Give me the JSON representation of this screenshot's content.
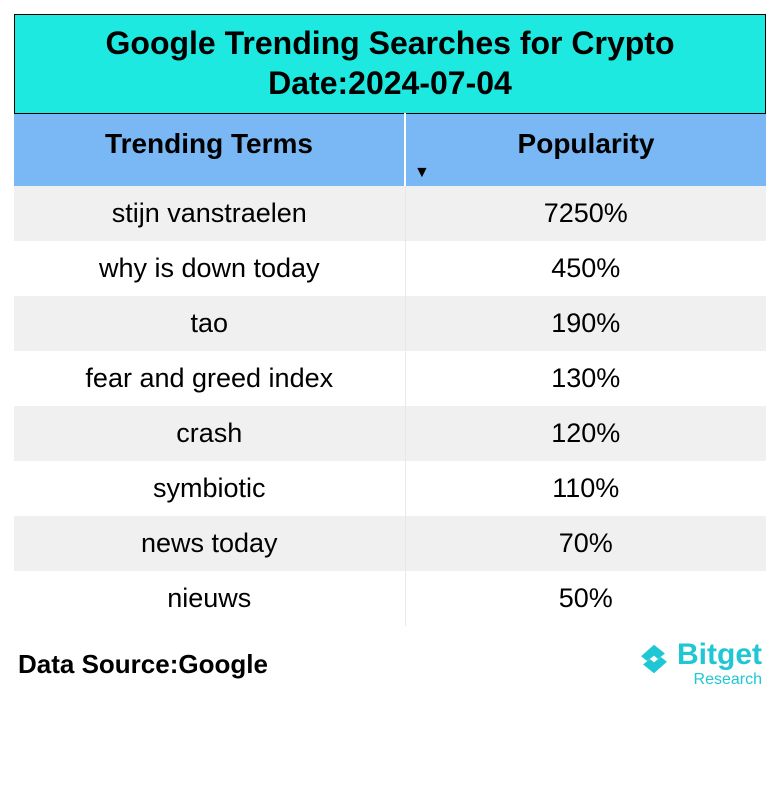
{
  "title": {
    "line1": "Google Trending Searches for Crypto",
    "line2": "Date:2024-07-04",
    "background_color": "#1de9e0",
    "text_color": "#000000",
    "font_size": 32,
    "font_weight": 700
  },
  "table": {
    "type": "table",
    "header_background": "#7ab8f5",
    "header_text_color": "#000000",
    "header_font_size": 28,
    "row_even_bg": "#ffffff",
    "row_odd_bg": "#f0f0f0",
    "cell_font_size": 27,
    "border_color": "#000000",
    "inner_divider_color": "#e8e8e8",
    "columns": [
      {
        "label": "Trending Terms",
        "width_pct": 52,
        "align": "center",
        "sorted": false
      },
      {
        "label": "Popularity",
        "width_pct": 48,
        "align": "center",
        "sorted": "desc"
      }
    ],
    "rows": [
      {
        "term": "stijn vanstraelen",
        "popularity": "7250%"
      },
      {
        "term": "why is down today",
        "popularity": "450%"
      },
      {
        "term": "tao",
        "popularity": "190%"
      },
      {
        "term": "fear and greed index",
        "popularity": "130%"
      },
      {
        "term": "crash",
        "popularity": "120%"
      },
      {
        "term": "symbiotic",
        "popularity": "110%"
      },
      {
        "term": "news today",
        "popularity": "70%"
      },
      {
        "term": "nieuws",
        "popularity": "50%"
      }
    ]
  },
  "footer": {
    "source_label": "Data Source:Google",
    "source_font_size": 26,
    "brand_name": "Bitget",
    "brand_sub": "Research",
    "brand_color": "#1fc7d4",
    "brand_font_size": 30
  },
  "background_color": "#ffffff"
}
